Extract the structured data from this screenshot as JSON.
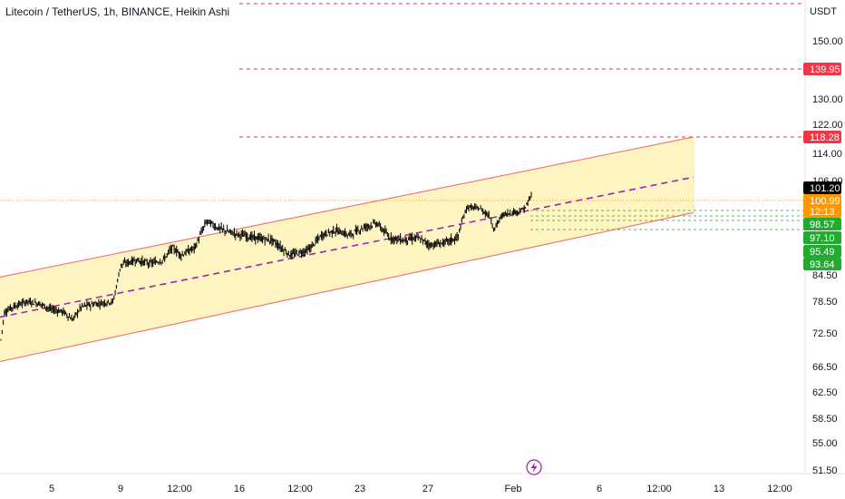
{
  "chart_data": {
    "type": "candlestick",
    "title": "Litecoin / TetherUS, 1h, BINANCE, Heikin Ashi",
    "currency": "USDT",
    "y_scale": "log",
    "ylim": [
      50.5,
      162
    ],
    "price_ticks": [
      "150.00",
      "130.00",
      "122.00",
      "114.00",
      "106.00",
      "84.50",
      "78.50",
      "72.50",
      "66.50",
      "62.50",
      "58.50",
      "55.00",
      "51.50"
    ],
    "time_ticks": [
      "5",
      "9",
      "12:00",
      "16",
      "12:00",
      "23",
      "27",
      "Feb",
      "6",
      "12:00",
      "13",
      "12:00"
    ],
    "price_series_approx": [
      [
        0,
        70.0
      ],
      [
        5,
        76.5
      ],
      [
        15,
        77.5
      ],
      [
        30,
        78.5
      ],
      [
        45,
        78.0
      ],
      [
        55,
        77.0
      ],
      [
        70,
        76.5
      ],
      [
        80,
        75.0
      ],
      [
        90,
        77.5
      ],
      [
        105,
        78.0
      ],
      [
        125,
        78.5
      ],
      [
        133,
        86.5
      ],
      [
        150,
        87.5
      ],
      [
        165,
        86.8
      ],
      [
        180,
        87.5
      ],
      [
        190,
        90.0
      ],
      [
        200,
        88.5
      ],
      [
        215,
        90.0
      ],
      [
        228,
        95.5
      ],
      [
        240,
        94.0
      ],
      [
        255,
        93.0
      ],
      [
        268,
        92.5
      ],
      [
        280,
        92.0
      ],
      [
        300,
        91.5
      ],
      [
        320,
        88.5
      ],
      [
        340,
        89.5
      ],
      [
        355,
        92.5
      ],
      [
        370,
        93.5
      ],
      [
        385,
        92.5
      ],
      [
        400,
        94.0
      ],
      [
        415,
        95.0
      ],
      [
        430,
        92.0
      ],
      [
        445,
        91.5
      ],
      [
        460,
        92.0
      ],
      [
        475,
        90.5
      ],
      [
        490,
        91.0
      ],
      [
        505,
        92.0
      ],
      [
        515,
        99.5
      ],
      [
        530,
        99.0
      ],
      [
        540,
        97.0
      ],
      [
        545,
        93.5
      ],
      [
        555,
        97.5
      ],
      [
        565,
        98.0
      ],
      [
        575,
        98.5
      ],
      [
        580,
        99.5
      ],
      [
        585,
        102.0
      ]
    ],
    "annotations": {
      "channel_upper": [
        [
          0,
          84.0
        ],
        [
          765,
          118.3
        ]
      ],
      "channel_lower": [
        [
          0,
          67.4
        ],
        [
          765,
          98.0
        ]
      ],
      "channel_mid": [
        [
          0,
          75.5
        ],
        [
          765,
          107.0
        ]
      ],
      "resistance_levels": [
        {
          "price": 139.95,
          "label": "139.95"
        },
        {
          "price": 118.28,
          "label": "118.28"
        }
      ],
      "top_dashed_price": 161.5,
      "current_price_line": 101.2,
      "support_levels": [
        {
          "price": 98.57,
          "label": "98.57"
        },
        {
          "price": 97.1,
          "label": "97.10"
        },
        {
          "price": 95.49,
          "label": "95.49"
        },
        {
          "price": 93.64,
          "label": "93.64"
        }
      ]
    },
    "price_tags": [
      {
        "label": "101.20",
        "color": "#000000"
      },
      {
        "label": "100.99",
        "color": "#ff9800"
      },
      {
        "label": "12:13",
        "color": "#ff9800"
      }
    ],
    "colors": {
      "candle": "#000000",
      "channel_fill": "#fff5c2",
      "channel_border": "#f07a7a",
      "mid_line": "#9c27b0",
      "resistance": "#f23645",
      "support": "#22ab2f",
      "current": "#ff9800"
    }
  }
}
